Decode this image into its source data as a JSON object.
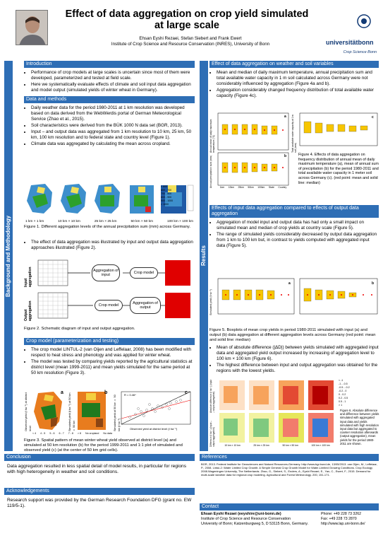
{
  "header": {
    "title": "Effect of data aggregation on crop yield simulated at large scale",
    "authors": "Ehsan Eyshi Rezaei, Stefan Siebert and Frank Ewert",
    "institute": "Institute of Crop Science and Resource Conservation (INRES), University of Bonn",
    "uni_name": "universitätbonn",
    "uni_dept": "Crop Science Bonn"
  },
  "sidebars": {
    "left": "Background and Methodology",
    "right": "Results"
  },
  "introduction": {
    "heading": "Introduction",
    "bullets": [
      "Performance of crop models at large scales is uncertain since most of them were developed, parameterized and tested at field scale.",
      "Here we systematically evaluate effects of climate and soil input data aggregation and model output (simulated yields of winter wheat in Germany)."
    ]
  },
  "data_methods": {
    "heading": "Data and methods",
    "bullets": [
      "Daily weather data for the period 1980-2011 at 1 km resolution was developed based on data derived from the WebWerdis portal of German Meteorological Service (Zhao et al., 2015).",
      "Soil characteristics were derived from the BÜK 1000 N data set (BGR, 2013).",
      "Input – and output data was aggregated from 1 km resolution to 10 km, 25 km, 50 km, 100 km resolution and to federal state and country level (Figure 1).",
      "Climate data was aggregated by calculating the mean across cropland."
    ],
    "map_labels": [
      "1 km × 1 km",
      "10 km × 10 km",
      "25 km × 25 km",
      "50 km × 50 km",
      "100 km × 100 km"
    ],
    "legend": [
      "< 600",
      "600 - 700",
      "700 - 800",
      "800 - 900",
      "900 - 1000",
      "> 1000"
    ],
    "fig1_caption": "Figure 1. Different aggregation levels of the annual precipitation sum (mm) across Germany.",
    "bullet2": "The effect of data aggregation was illustrated by input and output data aggregation approaches illustrated (Figure 2).",
    "fig2_labels": {
      "input": "Input aggregation",
      "output": "Output aggregation",
      "agg_input": "Aggregation of input",
      "crop_model": "Crop model",
      "crop_model2": "Crop model",
      "agg_output": "Aggregation of output"
    },
    "fig2_caption": "Figure 2. Schematic diagram of input and output aggregation."
  },
  "crop_model": {
    "heading": "Crop model (parameterization and testing)",
    "bullets": [
      "The crop model LINTUL-2 (van Oijen and Leffelaar, 2008) has been modified with respect to heat stress and phenology and was applied for winter wheat.",
      "The model was tested by comparing yields reported by the agricultural statistics at district level (mean 1999-2011) and mean yields simulated for the same period at 50 km resolution (Figure 3)."
    ],
    "panel_letters": [
      "a",
      "b",
      "c"
    ],
    "ylabel_a": "Observed yield (t ha⁻¹) at district level",
    "ylabel_b": "Simulated yield (t ha⁻¹) at 50 km × 50 km",
    "ylabel_c": "Simulated yield at 50 km × 50 km (t ha⁻¹)",
    "xlabel_c": "Observed yield at district level (t ha⁻¹)",
    "r2": "R = 0.46*",
    "legend": [
      "< 4",
      "4 - 5",
      "5 - 6",
      "6 - 7",
      "7 - 8",
      "> 8",
      "No cropland",
      "No data"
    ],
    "fig3_caption": "Figure 3. Spatial pattern of mean winter wheat yield observed at district level (a) and simulated at 50 km resolution (b) for the period 1999-2011 and 1:1 plot of simulated and observed yield (c) (at the center of 50 km grid cells)."
  },
  "weather": {
    "heading": "Effect of data aggregation on weather and soil variables",
    "bullets": [
      "Mean and median of daily maximum temperature, annual precipitation sum and total available water capacity in 1 m soil calculated across Germany were not considerably influenced by aggregation (Figure 4a and b).",
      "Aggregation considerably changed frequency distribution of total available water capacity (Figure 4c)."
    ],
    "ylabel_a": "Annual mean of daily maximum temperature (°C)",
    "ylabel_b": "Annual precipitation sum (mm)",
    "ylabel_c": "Total available water capacity at 1m soil (mm)",
    "xcats": [
      "1km",
      "10km",
      "25km",
      "50km",
      "100km",
      "State",
      "Country"
    ],
    "fig4_caption": "Figure 4. Effects of data aggregation on frequency distribution of annual mean of daily maximum temperature (a), mean of annual sum of precipitation (b) for the period 1980-2011 and total available water capacity in 1 meter soil across Germany (c). (red point: mean and solid line: median)"
  },
  "input_output": {
    "heading": "Effects of input data aggregation compared to effects of output data aggregation",
    "bullets": [
      "Aggregation of model input and output data has had only a small impact on simulated mean and median of crop yields at country scale (Figure 5).",
      "The range of simulated yields considerably decreased by output data aggregation from 1 km to 100 km but, in contrast to yields computed with aggregated input data (Figure 5)."
    ],
    "ylabel": "Simulated yield (t ha⁻¹)",
    "fig5_caption": "Figure 5. Boxplots of mean crop yields in period 1980-2011 simulated with input (a) and output (b) data aggregation at different aggregation levels across Germany (red point: mean and solid line: median)",
    "bullets2": [
      "Mean of absolute difference (|ΔD|) between yields simulated with aggregated input data and aggregated yield output increased by increasing of aggregation level to 100 km × 100 km (Figure 6).",
      "The highest difference between input and output aggregation was obtained for the regions with the lowest yields."
    ],
    "fig6_ylabel_top": "Absolute difference (t ha⁻¹) (input – output aggregation)",
    "fig6_ylabel_bottom": "Difference (t ha⁻¹) (input – output aggregation)",
    "fig6_xlabels": [
      "10 km × 10 km",
      "25 km × 25 km",
      "50 km × 50 km",
      "100 km × 100 km"
    ],
    "fig6_legend": [
      "< -1",
      "-1 - -0.5",
      "-0.5 - -0.2",
      "-0.2 - 0",
      "0 - 0.2",
      "0.2 - 0.5",
      "0.5 - 1",
      "> 1"
    ],
    "fig6_caption": "Figure 6. Absolute difference and difference between yields simulated with aggregated input data and yields simulated with high resolution input data but aggregated to coarser resolution afterwards (output aggregation), mean yields for the period 1980-2011 are shown."
  },
  "conclusion": {
    "heading": "Conclusion",
    "text": "Data aggregation resulted in less spatial detail of model results, in particular for regions with high heterogeneity in weather and soil conditions."
  },
  "acknowledgements": {
    "heading": "Acknowledgements",
    "text": "Research support was provided by the German Research Foundation DFG (grant no. EW 119/5-1)."
  },
  "references": {
    "heading": "References",
    "text": "BGR, 2013. Federal Institute for Geosciences and Natural Resources-Germany. http://www.bgr.bund.de, 13/05/2013. van Oijen, M., Leffelaar, P., 2008. Lintul-2: Water Limited Crop Growth: A Simple General Crop Growth Model for Water-Limited Growing Conditions. Crop Ecology 2008.Wageningen University, The Netherlands. Zhao, G., Siebert, S., Enders, A., Eyshi Rezaei, E., Yan, C., Ewert, F., 2015. Demand for multi-scale weather data for regional crop modeling. Agricultural and Forest Meteorology. 200, 151-171."
  },
  "contact": {
    "heading": "Contact",
    "name": "Ehsan Eyshi Rezaei (eeyshire@uni-bonn.de)",
    "inst": "Institute of Crop Science and Resource Conservation",
    "addr": "University of Bonn; Katzenburgweg 5, D 53115 Bonn, Germany.",
    "phone": "Phone: +49 228 73 3262",
    "fax": "Fax:     +49 228 73 2870",
    "web": "http://www.lap.uni-bonn.de/"
  }
}
